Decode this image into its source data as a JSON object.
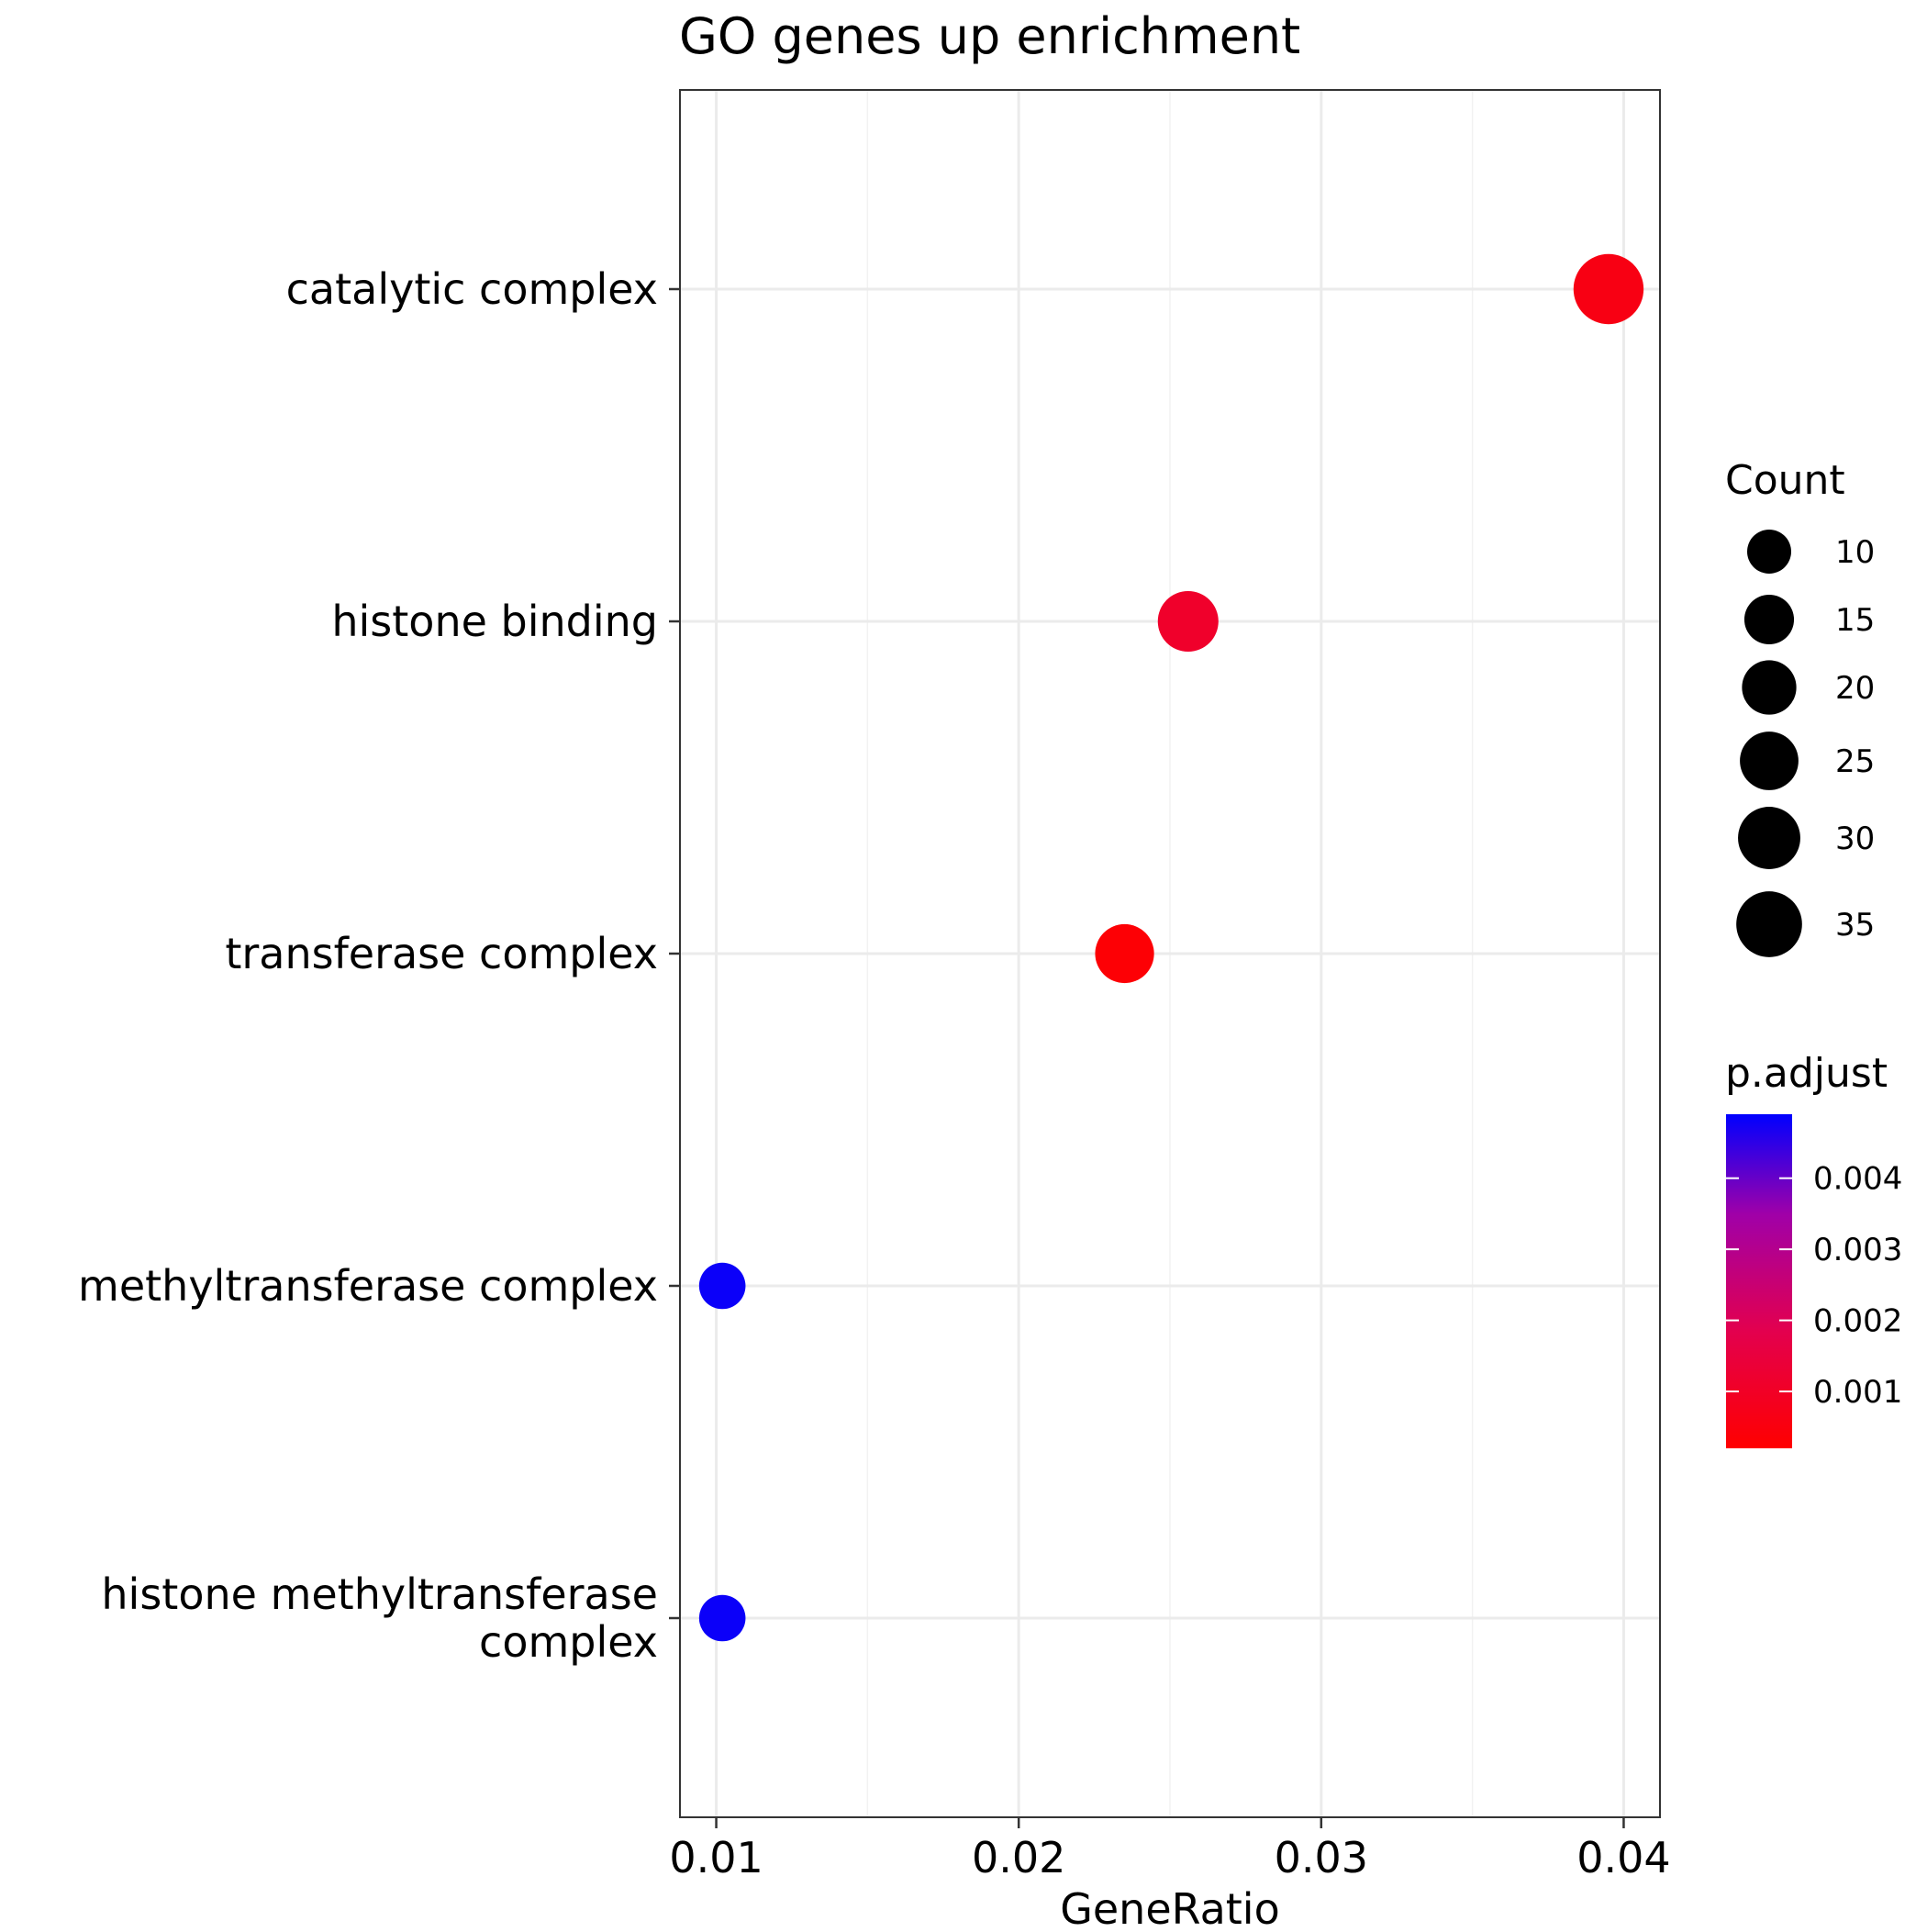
{
  "chart_data": {
    "type": "scatter",
    "title": "GO genes up enrichment",
    "xlabel": "GeneRatio",
    "ylabel": "",
    "xlim": [
      0.0088,
      0.0412
    ],
    "xticks": [
      0.01,
      0.02,
      0.03,
      0.04
    ],
    "xtick_labels": [
      "0.01",
      "0.02",
      "0.03",
      "0.04"
    ],
    "grid": true,
    "categories": [
      "catalytic complex",
      "histone binding",
      "transferase complex",
      "methyltransferase complex",
      "histone methyltransferase complex"
    ],
    "category_lines": [
      [
        "catalytic complex"
      ],
      [
        "histone binding"
      ],
      [
        "transferase complex"
      ],
      [
        "methyltransferase complex"
      ],
      [
        "histone methyltransferase",
        "complex"
      ]
    ],
    "points": [
      {
        "category": "catalytic complex",
        "gene_ratio": 0.0395,
        "count": 36,
        "p_adjust": 0.0006
      },
      {
        "category": "histone binding",
        "gene_ratio": 0.0256,
        "count": 23,
        "p_adjust": 0.0011
      },
      {
        "category": "transferase complex",
        "gene_ratio": 0.0235,
        "count": 21,
        "p_adjust": 0.0003
      },
      {
        "category": "methyltransferase complex",
        "gene_ratio": 0.0102,
        "count": 9,
        "p_adjust": 0.0048
      },
      {
        "category": "histone methyltransferase complex",
        "gene_ratio": 0.0102,
        "count": 9,
        "p_adjust": 0.0048
      }
    ],
    "size_legend": {
      "title": "Count",
      "values": [
        10,
        15,
        20,
        25,
        30,
        35
      ],
      "labels": [
        "10",
        "15",
        "20",
        "25",
        "30",
        "35"
      ]
    },
    "color_legend": {
      "title": "p.adjust",
      "range": [
        0.0002,
        0.0049
      ],
      "ticks": [
        0.001,
        0.002,
        0.003,
        0.004
      ],
      "tick_labels": [
        "0.001",
        "0.002",
        "0.003",
        "0.004"
      ],
      "low_color": "#ff0000",
      "high_color": "#0000ff"
    },
    "legend_position": "right"
  }
}
